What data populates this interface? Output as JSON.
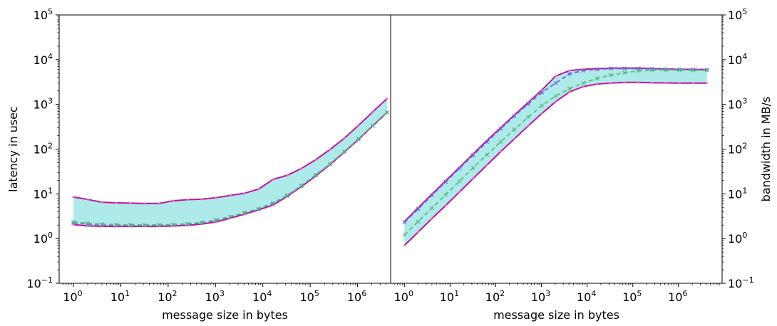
{
  "chart_data": [
    {
      "type": "line",
      "panel": "left",
      "title": "",
      "xlabel": "message size in bytes",
      "ylabel": "latency in usec",
      "xscale": "log",
      "yscale": "log",
      "xlim": [
        0.5,
        5000000
      ],
      "ylim": [
        0.1,
        100000
      ],
      "xticks": [
        {
          "value": 1,
          "base": "10",
          "exp": "0"
        },
        {
          "value": 10,
          "base": "10",
          "exp": "1"
        },
        {
          "value": 100,
          "base": "10",
          "exp": "2"
        },
        {
          "value": 1000,
          "base": "10",
          "exp": "3"
        },
        {
          "value": 10000,
          "base": "10",
          "exp": "4"
        },
        {
          "value": 100000,
          "base": "10",
          "exp": "5"
        },
        {
          "value": 1000000,
          "base": "10",
          "exp": "6"
        }
      ],
      "yticks": [
        {
          "value": 0.1,
          "base": "10",
          "exp": "−1"
        },
        {
          "value": 1,
          "base": "10",
          "exp": "0"
        },
        {
          "value": 10,
          "base": "10",
          "exp": "1"
        },
        {
          "value": 100,
          "base": "10",
          "exp": "2"
        },
        {
          "value": 1000,
          "base": "10",
          "exp": "3"
        },
        {
          "value": 10000,
          "base": "10",
          "exp": "4"
        },
        {
          "value": 100000,
          "base": "10",
          "exp": "5"
        }
      ],
      "x": [
        1,
        2,
        4,
        8,
        16,
        32,
        64,
        128,
        256,
        512,
        1024,
        2048,
        4096,
        8192,
        16384,
        32768,
        65536,
        131072,
        262144,
        524288,
        1048576,
        2097152,
        4194304
      ],
      "series": [
        {
          "style": "solid",
          "color": "#c0159a",
          "values": [
            8.5,
            7.5,
            6.5,
            6.3,
            6.2,
            6.1,
            6.1,
            7.0,
            7.4,
            7.6,
            8.2,
            9.2,
            10.3,
            12.8,
            21.0,
            26.0,
            37.0,
            58.0,
            98.0,
            175.0,
            340.0,
            680.0,
            1350.0
          ]
        },
        {
          "style": "solid",
          "color": "#c0159a",
          "values": [
            2.05,
            1.92,
            1.88,
            1.87,
            1.87,
            1.88,
            1.88,
            1.91,
            1.97,
            2.1,
            2.35,
            2.85,
            3.5,
            4.4,
            5.6,
            8.8,
            14.5,
            25.0,
            45.0,
            85.0,
            165.0,
            330.0,
            660.0
          ]
        },
        {
          "style": "dashed",
          "color": "#6a5cd8",
          "values": [
            2.25,
            2.1,
            2.02,
            1.98,
            1.97,
            1.97,
            1.98,
            2.02,
            2.1,
            2.25,
            2.55,
            3.05,
            3.7,
            4.5,
            6.0,
            9.0,
            15.0,
            26.0,
            46.0,
            87.0,
            168.0,
            335.0,
            665.0
          ]
        },
        {
          "style": "dashed",
          "color": "#58b878",
          "values": [
            2.35,
            2.2,
            2.1,
            2.05,
            2.03,
            2.02,
            2.03,
            2.06,
            2.14,
            2.3,
            2.62,
            3.1,
            3.8,
            4.7,
            6.3,
            9.3,
            15.5,
            26.5,
            47.0,
            88.0,
            170.0,
            338.0,
            670.0
          ]
        }
      ],
      "band": {
        "color": "#aeeaea"
      }
    },
    {
      "type": "line",
      "panel": "right",
      "title": "",
      "xlabel": "message size in bytes",
      "ylabel": "bandwidth in MB/s",
      "xscale": "log",
      "yscale": "log",
      "xlim": [
        0.5,
        9000000
      ],
      "ylim": [
        0.1,
        100000
      ],
      "xticks": [
        {
          "value": 1,
          "base": "10",
          "exp": "0"
        },
        {
          "value": 10,
          "base": "10",
          "exp": "1"
        },
        {
          "value": 100,
          "base": "10",
          "exp": "2"
        },
        {
          "value": 1000,
          "base": "10",
          "exp": "3"
        },
        {
          "value": 10000,
          "base": "10",
          "exp": "4"
        },
        {
          "value": 100000,
          "base": "10",
          "exp": "5"
        },
        {
          "value": 1000000,
          "base": "10",
          "exp": "6"
        }
      ],
      "yticks": [
        {
          "value": 0.1,
          "base": "10",
          "exp": "−1"
        },
        {
          "value": 1,
          "base": "10",
          "exp": "0"
        },
        {
          "value": 10,
          "base": "10",
          "exp": "1"
        },
        {
          "value": 100,
          "base": "10",
          "exp": "2"
        },
        {
          "value": 1000,
          "base": "10",
          "exp": "3"
        },
        {
          "value": 10000,
          "base": "10",
          "exp": "4"
        },
        {
          "value": 100000,
          "base": "10",
          "exp": "5"
        }
      ],
      "x": [
        1,
        2,
        4,
        8,
        16,
        32,
        64,
        128,
        256,
        512,
        1024,
        2048,
        4096,
        8192,
        16384,
        32768,
        65536,
        131072,
        262144,
        524288,
        1048576,
        2097152,
        4194304
      ],
      "series": [
        {
          "style": "solid",
          "color": "#c0159a",
          "values": [
            2.4,
            4.9,
            9.8,
            19.5,
            39.0,
            78.0,
            156.0,
            300.0,
            580.0,
            1100.0,
            2100.0,
            4300.0,
            5700.0,
            6100.0,
            6300.0,
            6450.0,
            6500.0,
            6500.0,
            6350.0,
            6200.0,
            6100.0,
            6100.0,
            6000.0
          ]
        },
        {
          "style": "solid",
          "color": "#c0159a",
          "values": [
            0.7,
            1.4,
            2.8,
            5.5,
            11.0,
            22.0,
            44.0,
            88.0,
            170.0,
            330.0,
            630.0,
            1150.0,
            1900.0,
            2500.0,
            2850.0,
            3000.0,
            3100.0,
            3100.0,
            3050.0,
            3020.0,
            3000.0,
            3000.0,
            3000.0
          ]
        },
        {
          "style": "dashed",
          "color": "#6a5cd8",
          "values": [
            2.3,
            4.6,
            9.3,
            18.5,
            37.0,
            73.0,
            145.0,
            285.0,
            550.0,
            1020.0,
            1850.0,
            3000.0,
            4800.0,
            5700.0,
            6100.0,
            6300.0,
            6350.0,
            6300.0,
            6200.0,
            6100.0,
            6050.0,
            6000.0,
            5950.0
          ]
        },
        {
          "style": "dashed",
          "color": "#58b878",
          "values": [
            1.2,
            2.4,
            4.8,
            9.6,
            19.0,
            38.0,
            75.0,
            145.0,
            275.0,
            520.0,
            940.0,
            1550.0,
            2250.0,
            3000.0,
            3800.0,
            4500.0,
            5100.0,
            5600.0,
            5850.0,
            5900.0,
            5850.0,
            5800.0,
            5750.0
          ]
        }
      ],
      "band": {
        "color": "#aeeaea"
      }
    }
  ]
}
